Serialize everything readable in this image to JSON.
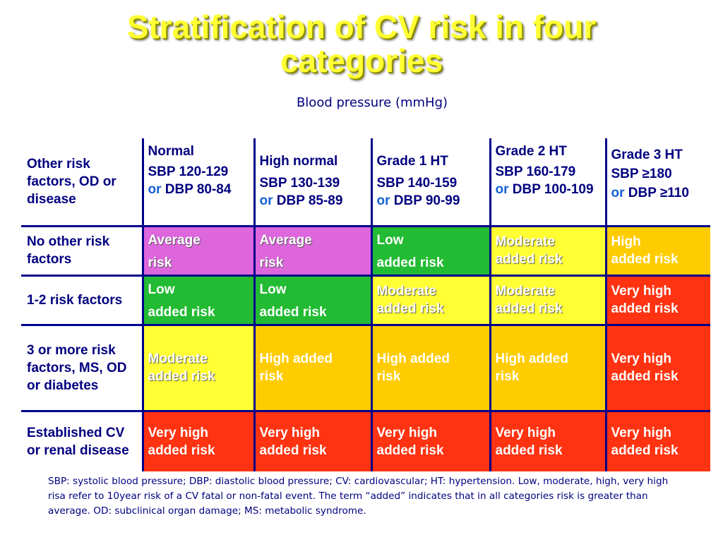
{
  "title_line1": "Stratification of CV risk in four",
  "title_line2": "categories",
  "subtitle": "Blood pressure (mmHg)",
  "corner_label": "Other risk factors, OD or disease",
  "colors": {
    "purple": "#dd66dd",
    "green": "#22bb33",
    "yellow": "#ffff33",
    "orange": "#ffcc00",
    "red": "#ff3311",
    "header_text": "#000080"
  },
  "columns": [
    {
      "name": "Normal",
      "sbp": "SBP 120-129",
      "or": "or",
      "dbp": "DBP 80-84"
    },
    {
      "name": "High normal",
      "sbp": "SBP 130-139",
      "or": "or",
      "dbp": "DBP 85-89"
    },
    {
      "name": "Grade 1 HT",
      "sbp": "SBP 140-159",
      "or": "or",
      "dbp": "DBP 90-99"
    },
    {
      "name": "Grade 2 HT",
      "sbp": "SBP 160-179",
      "or": "or",
      "dbp": "DBP 100-109"
    },
    {
      "name": "Grade 3 HT",
      "sbp": "SBP ≥180",
      "or": "or",
      "dbp": "DBP ≥110"
    }
  ],
  "rows": [
    {
      "label": "No other risk factors",
      "cells": [
        {
          "l1": "Average",
          "l2": "risk",
          "color": "purple"
        },
        {
          "l1": "Average",
          "l2": "risk",
          "color": "purple"
        },
        {
          "l1": "Low",
          "l2": "added risk",
          "color": "green"
        },
        {
          "l1": "Moderate",
          "l2": "added risk",
          "color": "yellow"
        },
        {
          "l1": "High",
          "l2": "added risk",
          "color": "orange"
        }
      ]
    },
    {
      "label": "1-2 risk factors",
      "cells": [
        {
          "l1": "Low",
          "l2": "added risk",
          "color": "green"
        },
        {
          "l1": "Low",
          "l2": "added risk",
          "color": "green"
        },
        {
          "l1": "Moderate",
          "l2": "added risk",
          "color": "yellow"
        },
        {
          "l1": "Moderate",
          "l2": "added risk",
          "color": "yellow"
        },
        {
          "l1": "Very high",
          "l2": "added risk",
          "color": "red"
        }
      ]
    },
    {
      "label": "3 or more risk factors, MS, OD or diabetes",
      "cells": [
        {
          "l1": "Moderate",
          "l2": "added risk",
          "color": "yellow"
        },
        {
          "l1": "High added",
          "l2": "risk",
          "color": "orange"
        },
        {
          "l1": "High added",
          "l2": "risk",
          "color": "orange"
        },
        {
          "l1": "High added",
          "l2": "risk",
          "color": "orange"
        },
        {
          "l1": "Very high",
          "l2": "added risk",
          "color": "red"
        }
      ]
    },
    {
      "label": "Established CV or renal disease",
      "cells": [
        {
          "l1": "Very high",
          "l2": "added risk",
          "color": "red"
        },
        {
          "l1": "Very high",
          "l2": "added risk",
          "color": "red"
        },
        {
          "l1": "Very high",
          "l2": "added risk",
          "color": "red"
        },
        {
          "l1": "Very high",
          "l2": "added risk",
          "color": "red"
        },
        {
          "l1": "Very high",
          "l2": "added risk",
          "color": "red"
        }
      ]
    }
  ],
  "footnote": "SBP: systolic blood pressure; DBP: diastolic blood pressure; CV: cardiovascular; HT: hypertension. Low, moderate, high, very high risa refer to 10year risk of a CV fatal or non-fatal event. The term “added” indicates that in all categories risk is greater than average. OD: subclinical organ damage; MS: metabolic syndrome."
}
